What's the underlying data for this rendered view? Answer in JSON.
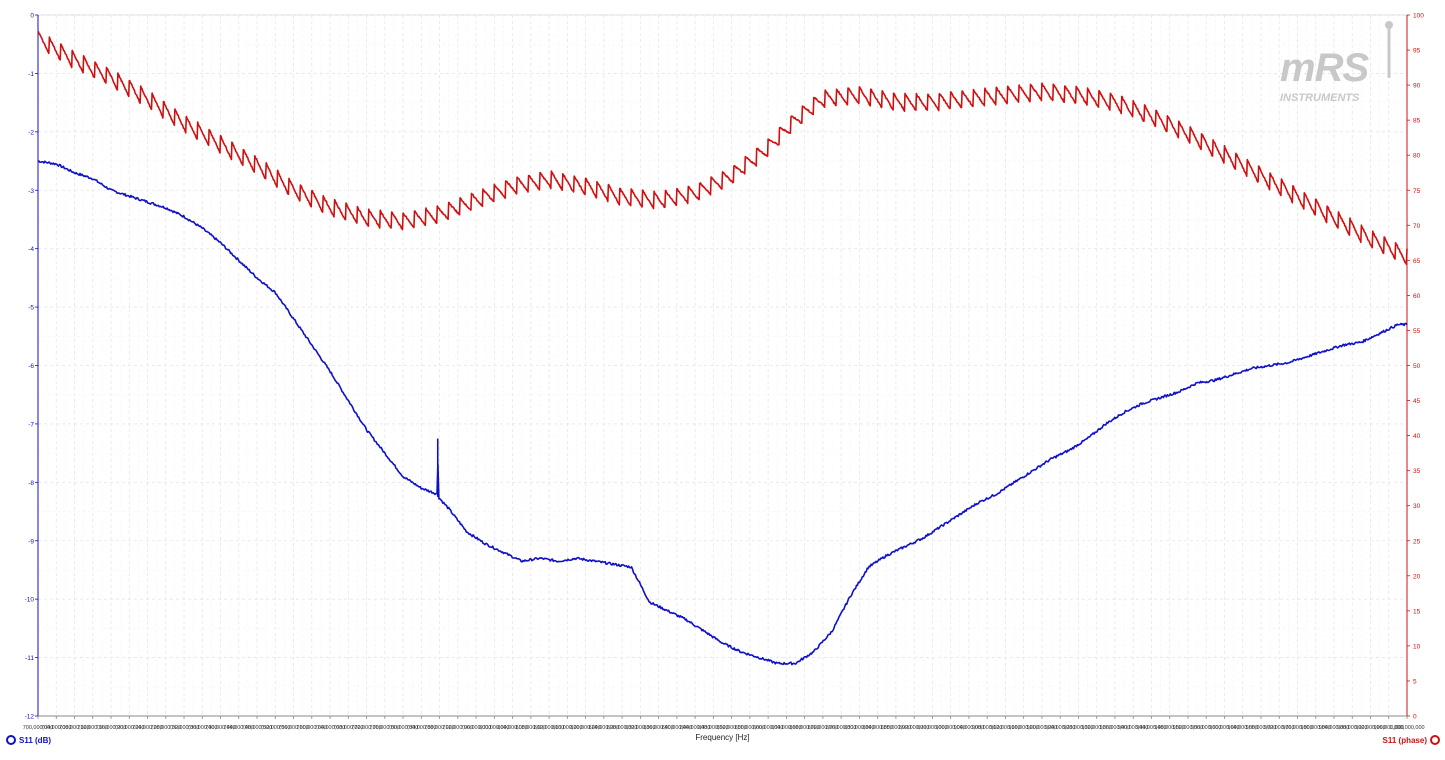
{
  "chart_data": {
    "type": "line",
    "xlabel": "Frequency [Hz]",
    "x_range": [
      700000000,
      1000000000
    ],
    "x_ticks": [
      "700,000,000",
      "704,000,000",
      "708,000,000",
      "712,000,000",
      "716,000,000",
      "720,000,000",
      "724,000,000",
      "728,000,000",
      "732,000,000",
      "736,000,000",
      "740,000,000",
      "744,000,000",
      "748,000,000",
      "752,000,000",
      "756,000,000",
      "760,000,000",
      "764,000,000",
      "768,000,000",
      "772,000,000",
      "776,000,000",
      "780,000,000",
      "784,000,000",
      "788,000,000",
      "792,000,000",
      "796,000,000",
      "800,000,000",
      "804,000,000",
      "808,000,000",
      "812,000,000",
      "816,000,000",
      "820,000,000",
      "824,000,000",
      "828,000,000",
      "832,000,000",
      "836,000,000",
      "840,000,000",
      "844,000,000",
      "848,000,000",
      "852,000,000",
      "856,000,000",
      "860,000,000",
      "864,000,000",
      "868,000,000",
      "872,000,000",
      "876,000,000",
      "880,000,000",
      "884,000,000",
      "888,000,000",
      "892,000,000",
      "896,000,000",
      "900,000,000",
      "904,000,000",
      "908,000,000",
      "912,000,000",
      "916,000,000",
      "920,000,000",
      "924,000,000",
      "928,000,000",
      "932,000,000",
      "936,000,000",
      "940,000,000",
      "944,000,000",
      "948,000,000",
      "952,000,000",
      "956,000,000",
      "960,000,000",
      "964,000,000",
      "968,000,000",
      "972,000,000",
      "976,000,000",
      "980,000,000",
      "984,000,000",
      "988,000,000",
      "992,000,000",
      "996,000,000",
      "1,000,000,000"
    ],
    "y_left": {
      "range": [
        -12,
        0
      ],
      "ticks": [
        "0",
        "-1",
        "-2",
        "-3",
        "-4",
        "-5",
        "-6",
        "-7",
        "-8",
        "-9",
        "-10",
        "-11",
        "-12"
      ],
      "color": "#1010c8"
    },
    "y_right": {
      "range": [
        0,
        100
      ],
      "ticks": [
        "100",
        "95",
        "90",
        "85",
        "80",
        "75",
        "70",
        "65",
        "60",
        "55",
        "50",
        "45",
        "40",
        "35",
        "30",
        "25",
        "20",
        "15",
        "10",
        "5",
        "0"
      ],
      "color": "#d01010"
    },
    "grid": true,
    "series": [
      {
        "name": "S11 (dB)",
        "axis": "left",
        "color": "#1010c8",
        "points": [
          [
            700000000,
            -2.5
          ],
          [
            704000000,
            -2.55
          ],
          [
            708000000,
            -2.7
          ],
          [
            712000000,
            -2.8
          ],
          [
            716000000,
            -3.0
          ],
          [
            720000000,
            -3.1
          ],
          [
            724000000,
            -3.2
          ],
          [
            728000000,
            -3.3
          ],
          [
            732000000,
            -3.45
          ],
          [
            736000000,
            -3.65
          ],
          [
            740000000,
            -3.9
          ],
          [
            744000000,
            -4.2
          ],
          [
            748000000,
            -4.5
          ],
          [
            752000000,
            -4.75
          ],
          [
            756000000,
            -5.2
          ],
          [
            760000000,
            -5.65
          ],
          [
            764000000,
            -6.1
          ],
          [
            768000000,
            -6.6
          ],
          [
            772000000,
            -7.1
          ],
          [
            776000000,
            -7.5
          ],
          [
            780000000,
            -7.9
          ],
          [
            784000000,
            -8.1
          ],
          [
            787500000,
            -8.2
          ],
          [
            787600000,
            -7.25
          ],
          [
            787700000,
            -8.25
          ],
          [
            790000000,
            -8.45
          ],
          [
            794000000,
            -8.85
          ],
          [
            798000000,
            -9.05
          ],
          [
            802000000,
            -9.2
          ],
          [
            806000000,
            -9.35
          ],
          [
            810000000,
            -9.3
          ],
          [
            814000000,
            -9.35
          ],
          [
            818000000,
            -9.3
          ],
          [
            822000000,
            -9.35
          ],
          [
            826000000,
            -9.4
          ],
          [
            830000000,
            -9.45
          ],
          [
            834000000,
            -10.05
          ],
          [
            838000000,
            -10.2
          ],
          [
            842000000,
            -10.35
          ],
          [
            846000000,
            -10.55
          ],
          [
            850000000,
            -10.75
          ],
          [
            854000000,
            -10.9
          ],
          [
            858000000,
            -11.0
          ],
          [
            862000000,
            -11.1
          ],
          [
            866000000,
            -11.1
          ],
          [
            870000000,
            -10.9
          ],
          [
            874000000,
            -10.55
          ],
          [
            878000000,
            -9.95
          ],
          [
            882000000,
            -9.45
          ],
          [
            886000000,
            -9.25
          ],
          [
            890000000,
            -9.1
          ],
          [
            894000000,
            -8.95
          ],
          [
            898000000,
            -8.75
          ],
          [
            902000000,
            -8.55
          ],
          [
            906000000,
            -8.35
          ],
          [
            910000000,
            -8.2
          ],
          [
            914000000,
            -8.0
          ],
          [
            918000000,
            -7.8
          ],
          [
            922000000,
            -7.6
          ],
          [
            926000000,
            -7.45
          ],
          [
            930000000,
            -7.25
          ],
          [
            934000000,
            -7.0
          ],
          [
            938000000,
            -6.8
          ],
          [
            942000000,
            -6.65
          ],
          [
            946000000,
            -6.55
          ],
          [
            950000000,
            -6.45
          ],
          [
            954000000,
            -6.3
          ],
          [
            958000000,
            -6.25
          ],
          [
            962000000,
            -6.15
          ],
          [
            966000000,
            -6.05
          ],
          [
            970000000,
            -6.0
          ],
          [
            974000000,
            -5.95
          ],
          [
            978000000,
            -5.85
          ],
          [
            982000000,
            -5.75
          ],
          [
            986000000,
            -5.65
          ],
          [
            990000000,
            -5.6
          ],
          [
            994000000,
            -5.45
          ],
          [
            998000000,
            -5.3
          ],
          [
            1000000000,
            -5.3
          ]
        ]
      },
      {
        "name": "S11 (phase)",
        "axis": "right",
        "color": "#d01010",
        "sawtooth_step_hz": 2500000,
        "sawtooth_amplitude": 2.5,
        "points": [
          [
            700000000,
            96.5
          ],
          [
            708000000,
            93.5
          ],
          [
            716000000,
            91
          ],
          [
            724000000,
            88
          ],
          [
            732000000,
            84.5
          ],
          [
            740000000,
            81.5
          ],
          [
            748000000,
            78.5
          ],
          [
            756000000,
            75
          ],
          [
            764000000,
            72.5
          ],
          [
            772000000,
            71
          ],
          [
            780000000,
            70.5
          ],
          [
            788000000,
            71.5
          ],
          [
            796000000,
            73.5
          ],
          [
            804000000,
            75.5
          ],
          [
            812000000,
            76.5
          ],
          [
            820000000,
            75.5
          ],
          [
            828000000,
            74
          ],
          [
            836000000,
            73.5
          ],
          [
            844000000,
            74.5
          ],
          [
            852000000,
            77
          ],
          [
            860000000,
            81
          ],
          [
            866000000,
            85
          ],
          [
            872000000,
            88
          ],
          [
            880000000,
            88.5
          ],
          [
            888000000,
            87.5
          ],
          [
            896000000,
            87.5
          ],
          [
            904000000,
            88
          ],
          [
            912000000,
            88.5
          ],
          [
            920000000,
            89
          ],
          [
            928000000,
            88.5
          ],
          [
            936000000,
            87.5
          ],
          [
            944000000,
            85.5
          ],
          [
            952000000,
            83
          ],
          [
            960000000,
            80
          ],
          [
            968000000,
            77
          ],
          [
            976000000,
            74
          ],
          [
            984000000,
            71
          ],
          [
            992000000,
            68
          ],
          [
            1000000000,
            65.5
          ]
        ]
      }
    ]
  },
  "legend": {
    "left_label": "S11 (dB)",
    "right_label": "S11 (phase)"
  },
  "logo": {
    "main": "mRS",
    "sub": "INSTRUMENTS"
  }
}
